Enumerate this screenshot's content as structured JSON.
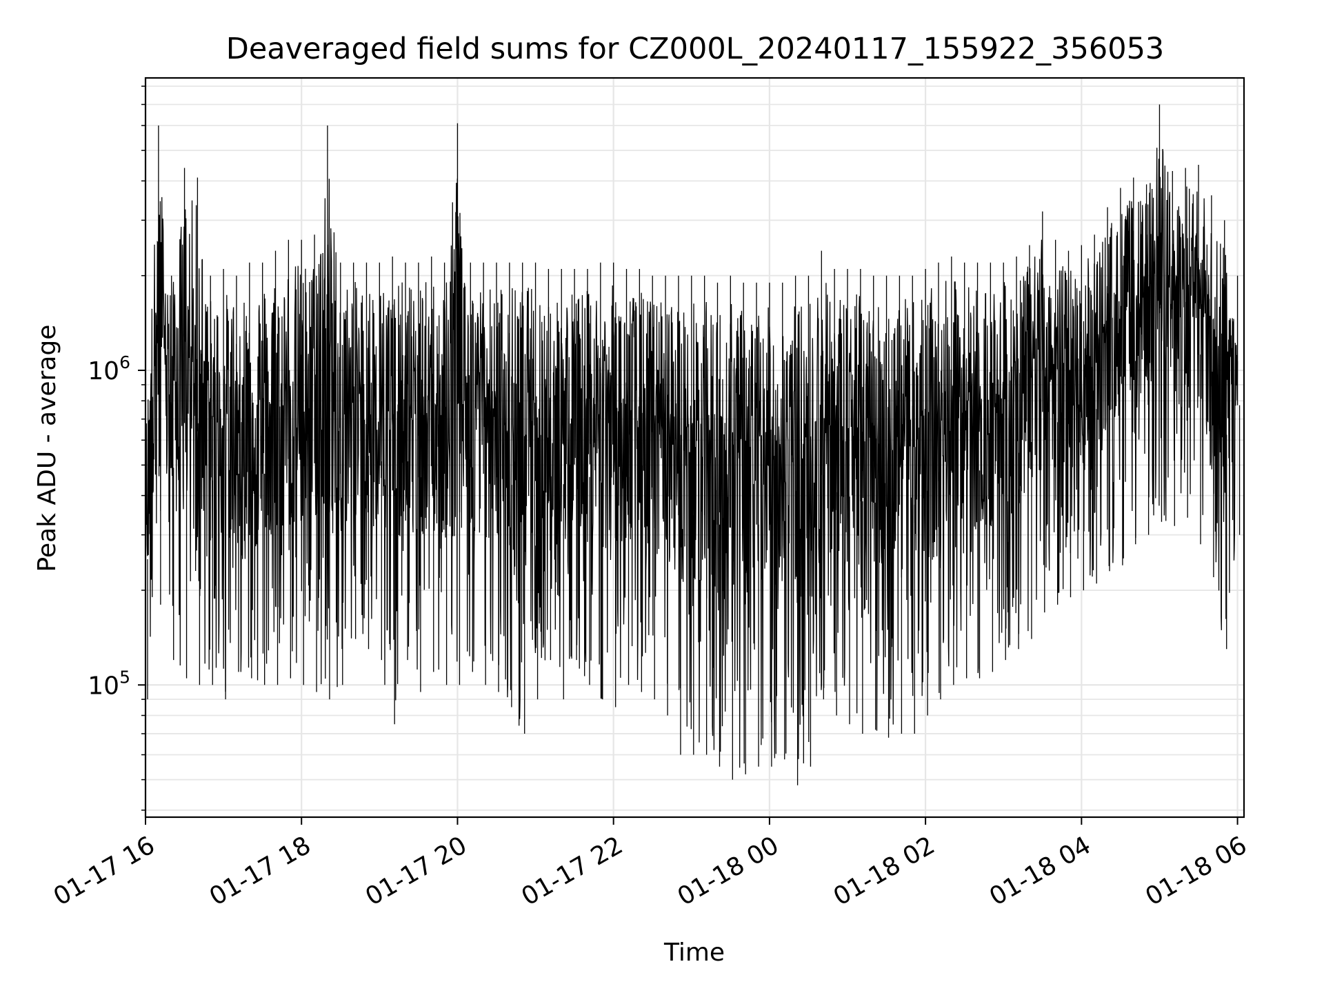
{
  "chart_data": {
    "type": "line",
    "title": "Deaveraged field sums for CZ000L_20240117_155922_356053",
    "xlabel": "Time",
    "ylabel": "Peak ADU - average",
    "yscale": "log",
    "ylim": [
      38000,
      8500000
    ],
    "xlim": [
      "2024-01-17 16:00",
      "2024-01-18 06:05"
    ],
    "grid": true,
    "line_color": "#000000",
    "x_ticks": [
      "01-17 16",
      "01-17 18",
      "01-17 20",
      "01-17 22",
      "01-18 00",
      "01-18 02",
      "01-18 04",
      "01-18 06"
    ],
    "y_ticks": [
      {
        "base": "10",
        "exp": "5",
        "value": 100000
      },
      {
        "base": "10",
        "exp": "6",
        "value": 1000000
      }
    ],
    "series": [
      {
        "x": [
          "2024-01-17 16:00",
          "2024-01-17 16:10",
          "2024-01-17 16:20",
          "2024-01-17 16:30",
          "2024-01-17 16:40",
          "2024-01-17 16:50",
          "2024-01-17 17:00",
          "2024-01-17 17:10",
          "2024-01-17 17:20",
          "2024-01-17 17:30",
          "2024-01-17 17:40",
          "2024-01-17 17:50",
          "2024-01-17 18:00",
          "2024-01-17 18:10",
          "2024-01-17 18:20",
          "2024-01-17 18:30",
          "2024-01-17 18:40",
          "2024-01-17 18:50",
          "2024-01-17 19:00",
          "2024-01-17 19:10",
          "2024-01-17 19:20",
          "2024-01-17 19:30",
          "2024-01-17 19:40",
          "2024-01-17 19:50",
          "2024-01-17 20:00",
          "2024-01-17 20:10",
          "2024-01-17 20:20",
          "2024-01-17 20:30",
          "2024-01-17 20:40",
          "2024-01-17 20:50",
          "2024-01-17 21:00",
          "2024-01-17 21:10",
          "2024-01-17 21:20",
          "2024-01-17 21:30",
          "2024-01-17 21:40",
          "2024-01-17 21:50",
          "2024-01-17 22:00",
          "2024-01-17 22:10",
          "2024-01-17 22:20",
          "2024-01-17 22:30",
          "2024-01-17 22:40",
          "2024-01-17 22:50",
          "2024-01-17 23:00",
          "2024-01-17 23:10",
          "2024-01-17 23:20",
          "2024-01-17 23:30",
          "2024-01-17 23:40",
          "2024-01-17 23:50",
          "2024-01-18 00:00",
          "2024-01-18 00:10",
          "2024-01-18 00:20",
          "2024-01-18 00:30",
          "2024-01-18 00:40",
          "2024-01-18 00:50",
          "2024-01-18 01:00",
          "2024-01-18 01:10",
          "2024-01-18 01:20",
          "2024-01-18 01:30",
          "2024-01-18 01:40",
          "2024-01-18 01:50",
          "2024-01-18 02:00",
          "2024-01-18 02:10",
          "2024-01-18 02:20",
          "2024-01-18 02:30",
          "2024-01-18 02:40",
          "2024-01-18 02:50",
          "2024-01-18 03:00",
          "2024-01-18 03:10",
          "2024-01-18 03:20",
          "2024-01-18 03:30",
          "2024-01-18 03:40",
          "2024-01-18 03:50",
          "2024-01-18 04:00",
          "2024-01-18 04:10",
          "2024-01-18 04:20",
          "2024-01-18 04:30",
          "2024-01-18 04:40",
          "2024-01-18 04:50",
          "2024-01-18 05:00",
          "2024-01-18 05:10",
          "2024-01-18 05:20",
          "2024-01-18 05:30",
          "2024-01-18 05:40",
          "2024-01-18 05:50",
          "2024-01-18 06:00"
        ],
        "y_high": [
          700000,
          6000000,
          2000000,
          4400000,
          4100000,
          2000000,
          2100000,
          2000000,
          2200000,
          2200000,
          2400000,
          2600000,
          2600000,
          2700000,
          6000000,
          2200000,
          2200000,
          2200000,
          2200000,
          2300000,
          2200000,
          2200000,
          2300000,
          2200000,
          6100000,
          2200000,
          2200000,
          2200000,
          2200000,
          2200000,
          2200000,
          2100000,
          2100000,
          2100000,
          2100000,
          2200000,
          2200000,
          2100000,
          2100000,
          2000000,
          2000000,
          2000000,
          2000000,
          2000000,
          1900000,
          2000000,
          1900000,
          1900000,
          1900000,
          1900000,
          2000000,
          2000000,
          2400000,
          2100000,
          2100000,
          2100000,
          2000000,
          2000000,
          2000000,
          2000000,
          2100000,
          2200000,
          2300000,
          2200000,
          2200000,
          2200000,
          2200000,
          2300000,
          2500000,
          3200000,
          2600000,
          2400000,
          2500000,
          2700000,
          3300000,
          3800000,
          4100000,
          3900000,
          7000000,
          4300000,
          4400000,
          4500000,
          3600000,
          3000000,
          2000000
        ],
        "y_low": [
          90000,
          180000,
          120000,
          105000,
          100000,
          100000,
          90000,
          110000,
          105000,
          100000,
          100000,
          105000,
          100000,
          95000,
          90000,
          100000,
          140000,
          130000,
          120000,
          75000,
          120000,
          95000,
          110000,
          100000,
          100000,
          110000,
          100000,
          95000,
          85000,
          70000,
          90000,
          120000,
          90000,
          120000,
          100000,
          90000,
          85000,
          100000,
          95000,
          90000,
          80000,
          60000,
          60000,
          60000,
          55000,
          50000,
          52000,
          55000,
          55000,
          58000,
          48000,
          55000,
          90000,
          80000,
          75000,
          70000,
          72000,
          68000,
          70000,
          70000,
          80000,
          90000,
          100000,
          105000,
          105000,
          110000,
          120000,
          130000,
          140000,
          170000,
          180000,
          190000,
          200000,
          210000,
          230000,
          240000,
          280000,
          300000,
          330000,
          320000,
          340000,
          280000,
          220000,
          130000,
          300000
        ]
      }
    ]
  }
}
